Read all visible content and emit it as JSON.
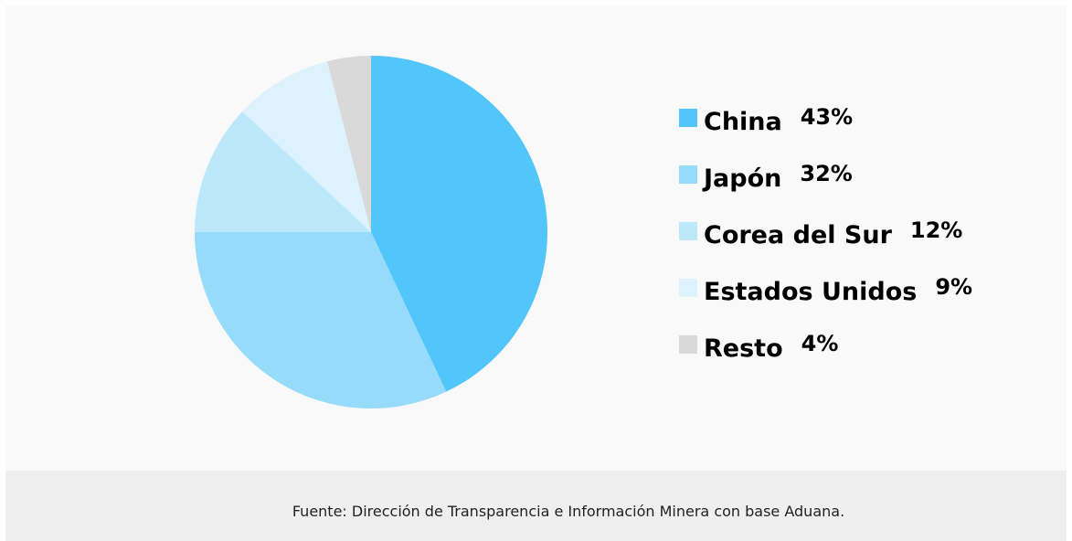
{
  "chart_data": {
    "type": "pie",
    "categories": [
      "China",
      "Japón",
      "Corea del Sur",
      "Estados Unidos",
      "Resto"
    ],
    "values": [
      43,
      32,
      12,
      9,
      4
    ],
    "value_labels": [
      "43%",
      "32%",
      "12%",
      "9%",
      "4%"
    ],
    "colors": [
      "#52c5fb",
      "#97dbfa",
      "#bde7fb",
      "#dcf2fd",
      "#d9d9d9"
    ],
    "legend": "right",
    "source": "Fuente: Dirección de Transparencia e Información Minera con base Aduana."
  }
}
